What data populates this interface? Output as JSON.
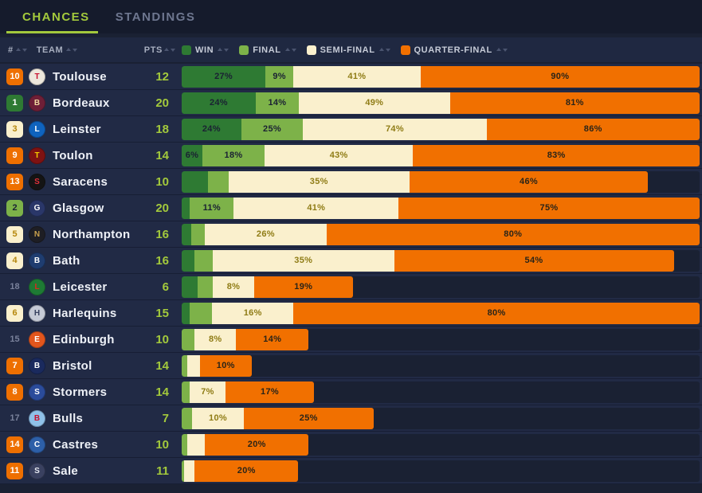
{
  "tabs": [
    {
      "label": "CHANCES",
      "active": true
    },
    {
      "label": "STANDINGS",
      "active": false
    }
  ],
  "table_header": {
    "rank": "#",
    "team": "TEAM",
    "pts": "PTS"
  },
  "legend": [
    {
      "key": "win",
      "label": "WIN",
      "color": "#2E7A33"
    },
    {
      "key": "final",
      "label": "FINAL",
      "color": "#7DB249"
    },
    {
      "key": "semi",
      "label": "SEMI-FINAL",
      "color": "#FAF0CD"
    },
    {
      "key": "quarter",
      "label": "QUARTER-FINAL",
      "color": "#F17000"
    }
  ],
  "colors": {
    "page_bg": "#1A2133",
    "topbar_bg": "#151B2C",
    "header_bg": "#1F2841",
    "row_bg": "#212A45",
    "track_bg": "#1A2133",
    "accent_lime": "#A3C93C",
    "seg_label_on_green": "#1A2133",
    "seg_label_on_cream": "#8F7C15",
    "seg_label_on_orange": "#2A2418",
    "zones": {
      "win": {
        "bg": "#2E7A33",
        "text": "#FFFFFF"
      },
      "final": {
        "bg": "#7DB249",
        "text": "#1A2133"
      },
      "semi": {
        "bg": "#FAF0CD",
        "text": "#B5860B"
      },
      "quarter": {
        "bg": "#EE6F00",
        "text": "#FFFFFF"
      },
      "none": {
        "bg": "transparent",
        "text": "#79819B"
      }
    }
  },
  "rows": [
    {
      "rank": "10",
      "rank_zone": "quarter",
      "team": "Toulouse",
      "pts": "12",
      "logo": {
        "bg": "#EDE7DC",
        "fg": "#C8102E",
        "initial": "T"
      },
      "segments": [
        {
          "key": "win",
          "value": 27,
          "label": "27%"
        },
        {
          "key": "final",
          "value": 9,
          "label": "9%"
        },
        {
          "key": "semi",
          "value": 41,
          "label": "41%"
        },
        {
          "key": "quarter",
          "value": 90,
          "label": "90%"
        }
      ]
    },
    {
      "rank": "1",
      "rank_zone": "win",
      "team": "Bordeaux",
      "pts": "20",
      "logo": {
        "bg": "#6E1F37",
        "fg": "#F0D9A0",
        "initial": "B"
      },
      "segments": [
        {
          "key": "win",
          "value": 24,
          "label": "24%"
        },
        {
          "key": "final",
          "value": 14,
          "label": "14%"
        },
        {
          "key": "semi",
          "value": 49,
          "label": "49%"
        },
        {
          "key": "quarter",
          "value": 81,
          "label": "81%"
        }
      ]
    },
    {
      "rank": "3",
      "rank_zone": "semi",
      "team": "Leinster",
      "pts": "18",
      "logo": {
        "bg": "#0F63BE",
        "fg": "#FFFFFF",
        "initial": "L"
      },
      "segments": [
        {
          "key": "win",
          "value": 24,
          "label": "24%"
        },
        {
          "key": "final",
          "value": 25,
          "label": "25%"
        },
        {
          "key": "semi",
          "value": 74,
          "label": "74%"
        },
        {
          "key": "quarter",
          "value": 86,
          "label": "86%"
        }
      ]
    },
    {
      "rank": "9",
      "rank_zone": "quarter",
      "team": "Toulon",
      "pts": "14",
      "logo": {
        "bg": "#7E1212",
        "fg": "#F3C900",
        "initial": "T"
      },
      "segments": [
        {
          "key": "win",
          "value": 6,
          "label": "6%"
        },
        {
          "key": "final",
          "value": 18,
          "label": "18%"
        },
        {
          "key": "semi",
          "value": 43,
          "label": "43%"
        },
        {
          "key": "quarter",
          "value": 83,
          "label": "83%"
        }
      ]
    },
    {
      "rank": "13",
      "rank_zone": "quarter",
      "team": "Saracens",
      "pts": "10",
      "logo": {
        "bg": "#141414",
        "fg": "#E0303A",
        "initial": "S"
      },
      "segments": [
        {
          "key": "win",
          "value": 5,
          "label": ""
        },
        {
          "key": "final",
          "value": 4,
          "label": ""
        },
        {
          "key": "semi",
          "value": 35,
          "label": "35%"
        },
        {
          "key": "quarter",
          "value": 46,
          "label": "46%"
        }
      ]
    },
    {
      "rank": "2",
      "rank_zone": "final",
      "team": "Glasgow",
      "pts": "20",
      "logo": {
        "bg": "#2A3769",
        "fg": "#FFFFFF",
        "initial": "G"
      },
      "segments": [
        {
          "key": "win",
          "value": 2,
          "label": ""
        },
        {
          "key": "final",
          "value": 11,
          "label": "11%"
        },
        {
          "key": "semi",
          "value": 41,
          "label": "41%"
        },
        {
          "key": "quarter",
          "value": 75,
          "label": "75%"
        }
      ]
    },
    {
      "rank": "5",
      "rank_zone": "semi",
      "team": "Northampton",
      "pts": "16",
      "logo": {
        "bg": "#1E1E24",
        "fg": "#C9A14D",
        "initial": "N"
      },
      "segments": [
        {
          "key": "win",
          "value": 2,
          "label": ""
        },
        {
          "key": "final",
          "value": 3,
          "label": ""
        },
        {
          "key": "semi",
          "value": 26,
          "label": "26%"
        },
        {
          "key": "quarter",
          "value": 80,
          "label": "80%"
        }
      ]
    },
    {
      "rank": "4",
      "rank_zone": "semi",
      "team": "Bath",
      "pts": "16",
      "logo": {
        "bg": "#1F3D70",
        "fg": "#FFFFFF",
        "initial": "B"
      },
      "segments": [
        {
          "key": "win",
          "value": 2.5,
          "label": ""
        },
        {
          "key": "final",
          "value": 3.5,
          "label": ""
        },
        {
          "key": "semi",
          "value": 35,
          "label": "35%"
        },
        {
          "key": "quarter",
          "value": 54,
          "label": "54%"
        }
      ]
    },
    {
      "rank": "18",
      "rank_zone": "none",
      "team": "Leicester",
      "pts": "6",
      "logo": {
        "bg": "#1E7A34",
        "fg": "#DA291C",
        "initial": "L"
      },
      "segments": [
        {
          "key": "win",
          "value": 3,
          "label": ""
        },
        {
          "key": "final",
          "value": 3,
          "label": ""
        },
        {
          "key": "semi",
          "value": 8,
          "label": "8%"
        },
        {
          "key": "quarter",
          "value": 19,
          "label": "19%"
        }
      ]
    },
    {
      "rank": "6",
      "rank_zone": "semi",
      "team": "Harlequins",
      "pts": "15",
      "logo": {
        "bg": "#C5CAD6",
        "fg": "#37415F",
        "initial": "H"
      },
      "segments": [
        {
          "key": "win",
          "value": 1.5,
          "label": ""
        },
        {
          "key": "final",
          "value": 4.5,
          "label": ""
        },
        {
          "key": "semi",
          "value": 16,
          "label": "16%"
        },
        {
          "key": "quarter",
          "value": 80,
          "label": "80%"
        }
      ]
    },
    {
      "rank": "15",
      "rank_zone": "none",
      "team": "Edinburgh",
      "pts": "10",
      "logo": {
        "bg": "#E2561D",
        "fg": "#FFFFFF",
        "initial": "E"
      },
      "segments": [
        {
          "key": "win",
          "value": 0,
          "label": ""
        },
        {
          "key": "final",
          "value": 2.5,
          "label": ""
        },
        {
          "key": "semi",
          "value": 8,
          "label": "8%"
        },
        {
          "key": "quarter",
          "value": 14,
          "label": "14%"
        }
      ]
    },
    {
      "rank": "7",
      "rank_zone": "quarter",
      "team": "Bristol",
      "pts": "14",
      "logo": {
        "bg": "#1A2A5E",
        "fg": "#FFFFFF",
        "initial": "B"
      },
      "segments": [
        {
          "key": "win",
          "value": 0,
          "label": ""
        },
        {
          "key": "final",
          "value": 1,
          "label": ""
        },
        {
          "key": "semi",
          "value": 2.5,
          "label": ""
        },
        {
          "key": "quarter",
          "value": 10,
          "label": "10%"
        }
      ]
    },
    {
      "rank": "8",
      "rank_zone": "quarter",
      "team": "Stormers",
      "pts": "14",
      "logo": {
        "bg": "#2B4C9B",
        "fg": "#FFFFFF",
        "initial": "S"
      },
      "segments": [
        {
          "key": "win",
          "value": 0,
          "label": ""
        },
        {
          "key": "final",
          "value": 1.5,
          "label": ""
        },
        {
          "key": "semi",
          "value": 7,
          "label": "7%"
        },
        {
          "key": "quarter",
          "value": 17,
          "label": "17%"
        }
      ]
    },
    {
      "rank": "17",
      "rank_zone": "none",
      "team": "Bulls",
      "pts": "7",
      "logo": {
        "bg": "#8FC1E9",
        "fg": "#C8102E",
        "initial": "B"
      },
      "segments": [
        {
          "key": "win",
          "value": 0,
          "label": ""
        },
        {
          "key": "final",
          "value": 2,
          "label": ""
        },
        {
          "key": "semi",
          "value": 10,
          "label": "10%"
        },
        {
          "key": "quarter",
          "value": 25,
          "label": "25%"
        }
      ]
    },
    {
      "rank": "14",
      "rank_zone": "quarter",
      "team": "Castres",
      "pts": "10",
      "logo": {
        "bg": "#2D5FA8",
        "fg": "#FFFFFF",
        "initial": "C"
      },
      "segments": [
        {
          "key": "win",
          "value": 0,
          "label": ""
        },
        {
          "key": "final",
          "value": 1,
          "label": ""
        },
        {
          "key": "semi",
          "value": 3.5,
          "label": ""
        },
        {
          "key": "quarter",
          "value": 20,
          "label": "20%"
        }
      ]
    },
    {
      "rank": "11",
      "rank_zone": "quarter",
      "team": "Sale",
      "pts": "11",
      "logo": {
        "bg": "#3A4160",
        "fg": "#E6E9F2",
        "initial": "S"
      },
      "segments": [
        {
          "key": "win",
          "value": 0,
          "label": ""
        },
        {
          "key": "final",
          "value": 0.5,
          "label": ""
        },
        {
          "key": "semi",
          "value": 2,
          "label": ""
        },
        {
          "key": "quarter",
          "value": 20,
          "label": "20%"
        }
      ]
    }
  ],
  "chart_data": {
    "type": "bar",
    "stacked": true,
    "unit": "%",
    "title": "CHANCES",
    "categories": [
      "Toulouse",
      "Bordeaux",
      "Leinster",
      "Toulon",
      "Saracens",
      "Glasgow",
      "Northampton",
      "Bath",
      "Leicester",
      "Harlequins",
      "Edinburgh",
      "Bristol",
      "Stormers",
      "Bulls",
      "Castres",
      "Sale"
    ],
    "points": [
      12,
      20,
      18,
      14,
      10,
      20,
      16,
      16,
      6,
      15,
      10,
      14,
      14,
      7,
      10,
      11
    ],
    "standings_rank": [
      10,
      1,
      3,
      9,
      13,
      2,
      5,
      4,
      18,
      6,
      15,
      7,
      8,
      17,
      14,
      11
    ],
    "series": [
      {
        "name": "WIN",
        "values": [
          27,
          24,
          24,
          6,
          5,
          2,
          2,
          2.5,
          3,
          1.5,
          0,
          0,
          0,
          0,
          0,
          0
        ]
      },
      {
        "name": "FINAL",
        "values": [
          9,
          14,
          25,
          18,
          4,
          11,
          3,
          3.5,
          3,
          4.5,
          2.5,
          1,
          1.5,
          2,
          1,
          0.5
        ]
      },
      {
        "name": "SEMI-FINAL",
        "values": [
          41,
          49,
          74,
          43,
          35,
          41,
          26,
          35,
          8,
          16,
          8,
          2.5,
          7,
          10,
          3.5,
          2
        ]
      },
      {
        "name": "QUARTER-FINAL",
        "values": [
          90,
          81,
          86,
          83,
          46,
          75,
          80,
          54,
          19,
          80,
          14,
          10,
          17,
          25,
          20,
          20
        ]
      }
    ],
    "legend_position": "top",
    "note_bar_scale": "segment widths = value% of full track, compressed to fit when row sum exceeds 100"
  }
}
